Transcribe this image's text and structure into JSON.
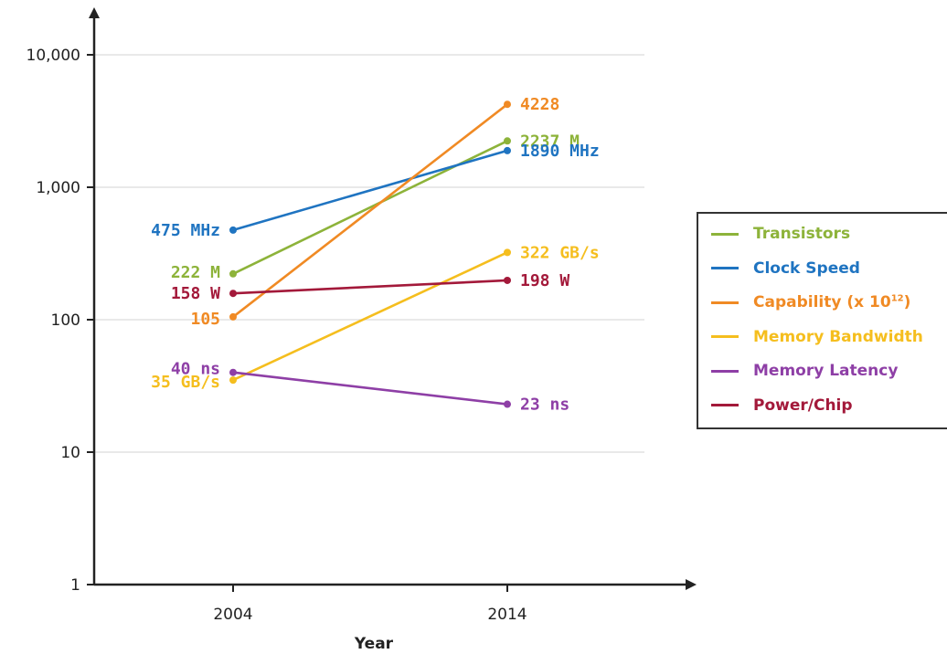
{
  "chart_data": {
    "type": "line",
    "xlabel": "Year",
    "ylabel": "",
    "y_scale": "log",
    "ylim": [
      1,
      10000
    ],
    "x": [
      "2004",
      "2014"
    ],
    "y_ticks": [
      1,
      10,
      100,
      1000,
      10000
    ],
    "y_tick_labels": [
      "1",
      "10",
      "100",
      "1,000",
      "10,000"
    ],
    "grid": "horizontal",
    "legend_position": "right",
    "series": [
      {
        "name": "Transistors",
        "color": "#8DB33A",
        "values": [
          222,
          2237
        ],
        "labels": [
          "222 M",
          "2237 M"
        ]
      },
      {
        "name": "Clock Speed",
        "color": "#1F74C1",
        "values": [
          475,
          1890
        ],
        "labels": [
          "475 MHz",
          "1890 MHz"
        ]
      },
      {
        "name": "Capability (x 10¹²)",
        "color": "#F08A24",
        "values": [
          105,
          4228
        ],
        "labels": [
          "105",
          "4228"
        ]
      },
      {
        "name": "Memory Bandwidth",
        "color": "#F5BE1E",
        "values": [
          35,
          322
        ],
        "labels": [
          "35 GB/s",
          "322 GB/s"
        ]
      },
      {
        "name": "Memory Latency",
        "color": "#8E3FA6",
        "values": [
          40,
          23
        ],
        "labels": [
          "40 ns",
          "23 ns"
        ]
      },
      {
        "name": "Power/Chip",
        "color": "#A3193A",
        "values": [
          158,
          198
        ],
        "labels": [
          "158 W",
          "198 W"
        ]
      }
    ]
  },
  "legend": {
    "items": [
      {
        "name": "Transistors",
        "color": "#8DB33A"
      },
      {
        "name": "Clock Speed",
        "color": "#1F74C1"
      },
      {
        "name": "Capability (x 10",
        "sup": "12",
        "tail": ")",
        "color": "#F08A24"
      },
      {
        "name": "Memory Bandwidth",
        "color": "#F5BE1E"
      },
      {
        "name": "Memory Latency",
        "color": "#8E3FA6"
      },
      {
        "name": "Power/Chip",
        "color": "#A3193A"
      }
    ]
  }
}
